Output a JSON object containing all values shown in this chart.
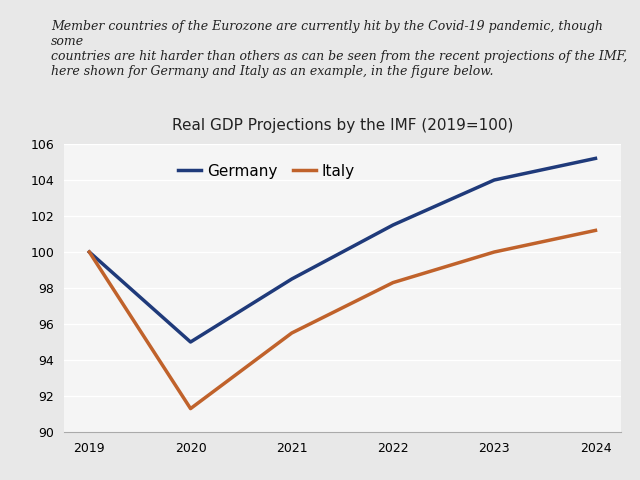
{
  "years": [
    2019,
    2020,
    2021,
    2022,
    2023,
    2024
  ],
  "germany": [
    100,
    95.0,
    98.5,
    101.5,
    104.0,
    105.2
  ],
  "italy": [
    100,
    91.3,
    95.5,
    98.3,
    100.0,
    101.2
  ],
  "germany_color": "#1F3A7A",
  "italy_color": "#C0622B",
  "title": "Real GDP Projections by the IMF (2019=100)",
  "ylim": [
    90,
    106
  ],
  "yticks": [
    90,
    92,
    94,
    96,
    98,
    100,
    102,
    104,
    106
  ],
  "xticks": [
    2019,
    2020,
    2021,
    2022,
    2023,
    2024
  ],
  "linewidth": 2.5,
  "annotation_text": "Member countries of the Eurozone are currently hit by the Covid-19 pandemic, though some\ncountries are hit harder than others as can be seen from the recent projections of the IMF,\nhere shown for Germany and Italy as an example, in the figure below.",
  "bg_color": "#e8e8e8",
  "plot_bg_color": "#f5f5f5",
  "grid_color": "#ffffff",
  "legend_germany": "Germany",
  "legend_italy": "Italy",
  "title_fontsize": 11,
  "annotation_fontsize": 9,
  "tick_fontsize": 9
}
